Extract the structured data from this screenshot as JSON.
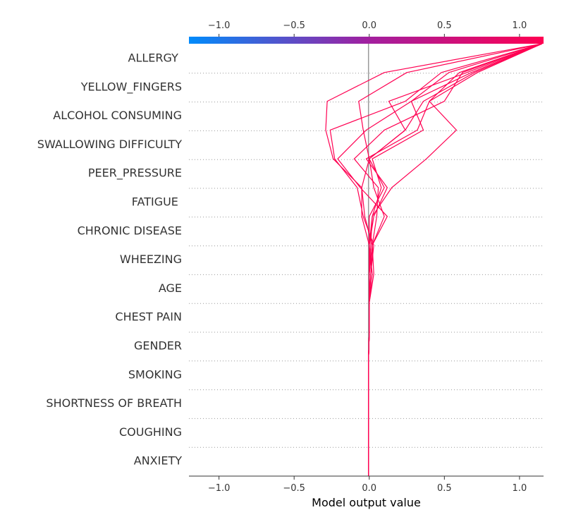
{
  "chart_data": {
    "type": "line",
    "subtype": "shap-decision-plot",
    "title": "",
    "xlabel": "Model output value",
    "ylabel": "",
    "xlim": [
      -1.2,
      1.16
    ],
    "xticks": [
      -1.0,
      -0.5,
      0.0,
      0.5,
      1.0
    ],
    "xtick_labels": [
      "−1.0",
      "−0.5",
      "0.0",
      "0.5",
      "1.0"
    ],
    "base_value": -0.005,
    "colorbar": {
      "position": "top",
      "low_color": "#008bfb",
      "high_color": "#ff0052",
      "mid_color": "#a020a0"
    },
    "line_color": "#ff0052",
    "grid": "dotted-horizontal",
    "features": [
      "ALLERGY ",
      "YELLOW_FINGERS",
      "ALCOHOL CONSUMING",
      "SWALLOWING DIFFICULTY",
      "PEER_PRESSURE",
      "FATIGUE ",
      "CHRONIC DISEASE",
      "WHEEZING",
      "AGE",
      "CHEST PAIN",
      "GENDER",
      "SMOKING",
      "SHORTNESS OF BREATH",
      "COUGHING",
      "ANXIETY"
    ],
    "series": [
      {
        "values": [
          1.15,
          0.1,
          -0.28,
          -0.29,
          -0.24,
          -0.05,
          -0.03,
          0.02,
          0.03,
          0.0,
          0.0,
          -0.005,
          -0.005,
          -0.005,
          -0.005,
          -0.005
        ]
      },
      {
        "values": [
          1.15,
          0.25,
          -0.07,
          -0.04,
          0.0,
          -0.05,
          -0.05,
          0.0,
          0.02,
          0.0,
          0.0,
          -0.005,
          -0.005,
          -0.005,
          -0.005,
          -0.005
        ]
      },
      {
        "values": [
          1.15,
          0.48,
          0.24,
          -0.26,
          -0.23,
          -0.08,
          -0.04,
          0.03,
          0.01,
          0.0,
          0.0,
          -0.005,
          -0.005,
          -0.005,
          -0.005,
          -0.005
        ]
      },
      {
        "values": [
          1.15,
          0.65,
          0.13,
          0.24,
          0.0,
          0.03,
          0.1,
          0.02,
          0.0,
          0.0,
          0.0,
          -0.005,
          -0.005,
          -0.005,
          -0.005,
          -0.005
        ]
      },
      {
        "values": [
          1.15,
          0.53,
          0.28,
          -0.02,
          -0.21,
          -0.06,
          0.12,
          0.02,
          0.01,
          0.0,
          0.0,
          -0.005,
          -0.005,
          -0.005,
          -0.005,
          -0.005
        ]
      },
      {
        "values": [
          1.15,
          0.6,
          0.4,
          0.58,
          0.38,
          0.15,
          0.02,
          0.01,
          0.0,
          0.0,
          0.0,
          -0.005,
          -0.005,
          -0.005,
          -0.005,
          -0.005
        ]
      },
      {
        "values": [
          1.15,
          0.7,
          0.36,
          0.24,
          0.0,
          0.1,
          0.0,
          0.0,
          0.0,
          0.0,
          0.0,
          -0.005,
          -0.005,
          -0.005,
          -0.005,
          -0.005
        ]
      },
      {
        "values": [
          1.15,
          0.62,
          0.5,
          0.1,
          -0.1,
          0.06,
          0.05,
          0.02,
          0.0,
          0.0,
          0.0,
          -0.005,
          -0.005,
          -0.005,
          -0.005,
          -0.005
        ]
      },
      {
        "values": [
          1.15,
          0.68,
          0.28,
          0.36,
          0.02,
          0.08,
          0.02,
          0.0,
          0.0,
          0.0,
          0.0,
          -0.005,
          -0.005,
          -0.005,
          -0.005,
          -0.005
        ]
      },
      {
        "values": [
          1.15,
          0.72,
          0.4,
          0.32,
          -0.02,
          0.12,
          0.03,
          0.0,
          0.0,
          0.0,
          0.0,
          -0.005,
          -0.005,
          -0.005,
          -0.005,
          -0.005
        ]
      }
    ]
  }
}
